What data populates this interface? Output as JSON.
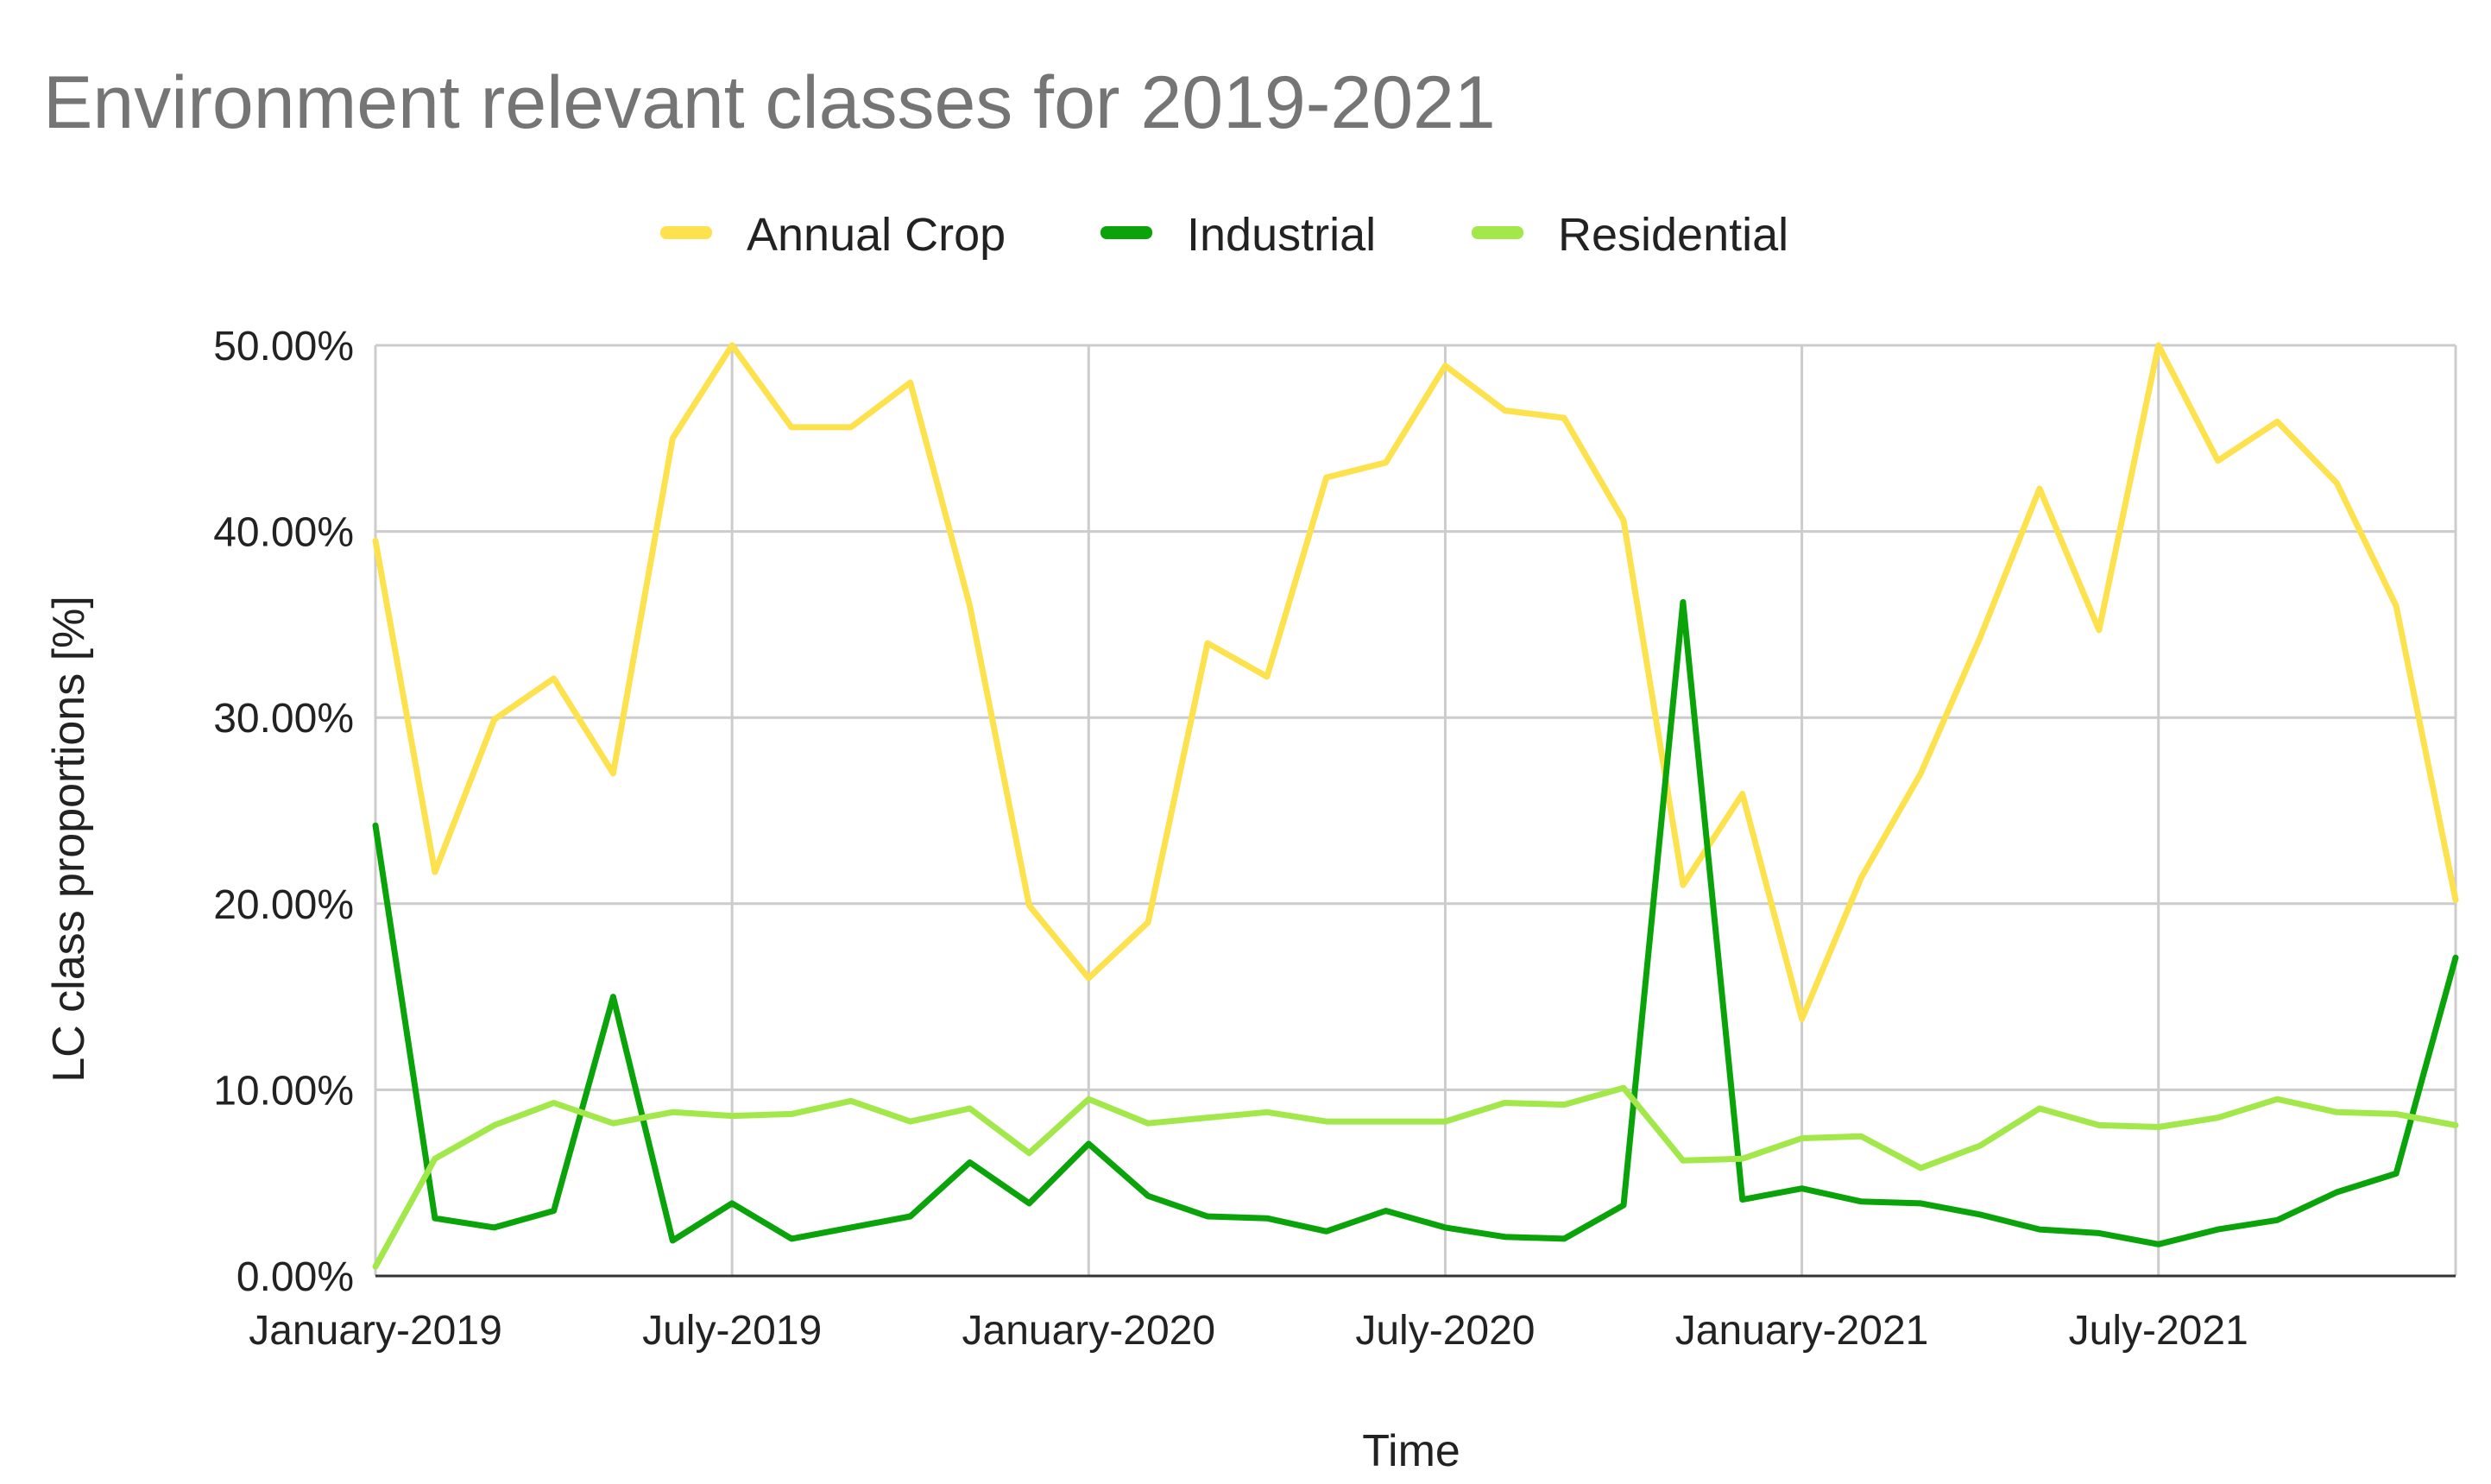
{
  "chart_data": {
    "type": "line",
    "title": "Environment relevant classes for 2019-2021",
    "xlabel": "Time",
    "ylabel": "LC class proportions [%]",
    "ylim": [
      0,
      50
    ],
    "yticks": [
      0,
      10,
      20,
      30,
      40,
      50
    ],
    "ytick_labels": [
      "0.00%",
      "10.00%",
      "20.00%",
      "30.00%",
      "40.00%",
      "50.00%"
    ],
    "xtick_labels": [
      "January-2019",
      "July-2019",
      "January-2020",
      "July-2020",
      "January-2021",
      "July-2021"
    ],
    "xtick_indices": [
      0,
      6,
      12,
      18,
      24,
      30
    ],
    "legend_position": "top",
    "grid": true,
    "series": [
      {
        "name": "Annual Crop",
        "color": "#fde14d",
        "values": [
          39.5,
          21.7,
          29.9,
          32.1,
          27.0,
          45.0,
          50.0,
          45.6,
          45.6,
          48.0,
          36.0,
          19.9,
          16.0,
          19.0,
          34.0,
          32.2,
          42.9,
          43.7,
          48.9,
          46.5,
          46.1,
          40.6,
          21.0,
          25.9,
          13.8,
          21.4,
          27.0,
          34.3,
          42.3,
          34.7,
          50.0,
          43.8,
          45.9,
          42.6,
          36.0,
          20.2
        ]
      },
      {
        "name": "Industrial",
        "color": "#0aa30a",
        "values": [
          24.2,
          3.1,
          2.6,
          3.5,
          15.0,
          1.9,
          3.9,
          2.0,
          2.6,
          3.2,
          6.1,
          3.9,
          7.1,
          4.3,
          3.2,
          3.1,
          2.4,
          3.5,
          2.6,
          2.1,
          2.0,
          3.8,
          36.2,
          4.1,
          4.7,
          4.0,
          3.9,
          3.3,
          2.5,
          2.3,
          1.7,
          2.5,
          3.0,
          4.5,
          5.5,
          17.1
        ]
      },
      {
        "name": "Residential",
        "color": "#a3e84a",
        "values": [
          0.5,
          6.3,
          8.1,
          9.3,
          8.2,
          8.8,
          8.6,
          8.7,
          9.4,
          8.3,
          9.0,
          6.6,
          9.5,
          8.2,
          8.5,
          8.8,
          8.3,
          8.3,
          8.3,
          9.3,
          9.2,
          10.1,
          6.2,
          6.3,
          7.4,
          7.5,
          5.8,
          7.0,
          9.0,
          8.1,
          8.0,
          8.5,
          9.5,
          8.8,
          8.7,
          8.1
        ]
      }
    ]
  }
}
